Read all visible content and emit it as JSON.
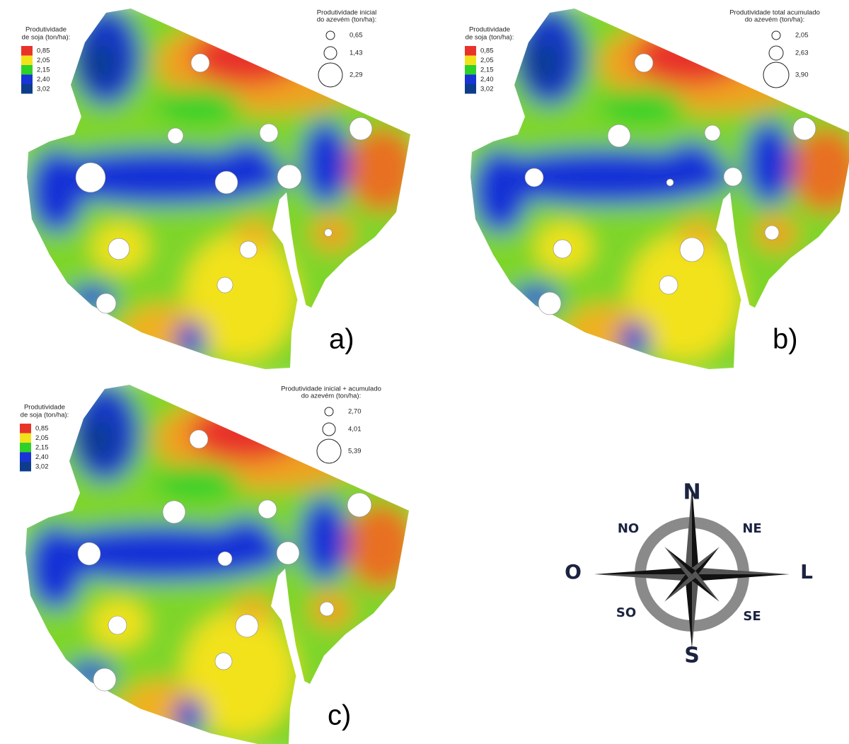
{
  "panels": [
    {
      "label": "a)",
      "color_legend": {
        "title": [
          "Produtividade",
          "de soja (ton/ha):"
        ],
        "items": [
          {
            "value": 0.85,
            "label": "0,85",
            "color": "#e8332a"
          },
          {
            "value": 2.05,
            "label": "2,05",
            "color": "#f2e21c"
          },
          {
            "value": 2.15,
            "label": "2,15",
            "color": "#2ed12a"
          },
          {
            "value": 2.4,
            "label": "2,40",
            "color": "#1833d6"
          },
          {
            "value": 3.02,
            "label": "3,02",
            "color": "#0d3c8c"
          }
        ]
      },
      "size_legend": {
        "title": [
          "Produtividade inicial",
          "do azevém (ton/ha):"
        ],
        "items": [
          {
            "value": 0.65,
            "label": "0,65"
          },
          {
            "value": 1.43,
            "label": "1,43"
          },
          {
            "value": 2.29,
            "label": "2,29"
          }
        ]
      },
      "points": [
        1.86,
        1.65,
        1.86,
        2.18,
        2.72,
        2.18,
        2.29,
        0.5,
        2.07,
        1.76,
        1.65,
        1.97
      ]
    },
    {
      "label": "b)",
      "color_legend": {
        "title": [
          "Produtividade",
          "de soja (ton/ha):"
        ],
        "items": [
          {
            "value": 0.85,
            "label": "0,85",
            "color": "#e8332a"
          },
          {
            "value": 2.05,
            "label": "2,05",
            "color": "#f2e21c"
          },
          {
            "value": 2.15,
            "label": "2,15",
            "color": "#2ed12a"
          },
          {
            "value": 2.4,
            "label": "2,40",
            "color": "#1833d6"
          },
          {
            "value": 3.02,
            "label": "3,02",
            "color": "#0d3c8c"
          }
        ]
      },
      "size_legend": {
        "title": [
          "Produtividade total acumulado",
          "do azevém (ton/ha):"
        ],
        "items": [
          {
            "value": 2.05,
            "label": "2,05"
          },
          {
            "value": 2.63,
            "label": "2,63"
          },
          {
            "value": 3.9,
            "label": "3,90"
          }
        ]
      },
      "points": [
        3.11,
        3.58,
        2.79,
        3.58,
        3.11,
        1.9,
        3.11,
        2.63,
        3.11,
        3.74,
        3.11,
        3.58
      ]
    },
    {
      "label": "c)",
      "color_legend": {
        "title": [
          "Produtividade",
          "de soja (ton/ha):"
        ],
        "items": [
          {
            "value": 0.85,
            "label": "0,85",
            "color": "#e8332a"
          },
          {
            "value": 2.05,
            "label": "2,05",
            "color": "#f2e21c"
          },
          {
            "value": 2.15,
            "label": "2,15",
            "color": "#2ed12a"
          },
          {
            "value": 2.4,
            "label": "2,40",
            "color": "#1833d6"
          },
          {
            "value": 3.02,
            "label": "3,02",
            "color": "#0d3c8c"
          }
        ]
      },
      "size_legend": {
        "title": [
          "Produtividade inicial + acumulado",
          "do azevém (ton/ha):"
        ],
        "items": [
          {
            "value": 2.7,
            "label": "2,70"
          },
          {
            "value": 4.01,
            "label": "4,01"
          },
          {
            "value": 5.39,
            "label": "5,39"
          }
        ]
      },
      "points": [
        4.7,
        5.22,
        4.7,
        5.39,
        5.22,
        4.18,
        5.22,
        4.18,
        4.7,
        5.22,
        4.53,
        5.22
      ]
    }
  ],
  "compass": {
    "n": "N",
    "ne": "NE",
    "e": "L",
    "se": "SE",
    "s": "S",
    "sw": "SO",
    "w": "O",
    "nw": "NO"
  }
}
